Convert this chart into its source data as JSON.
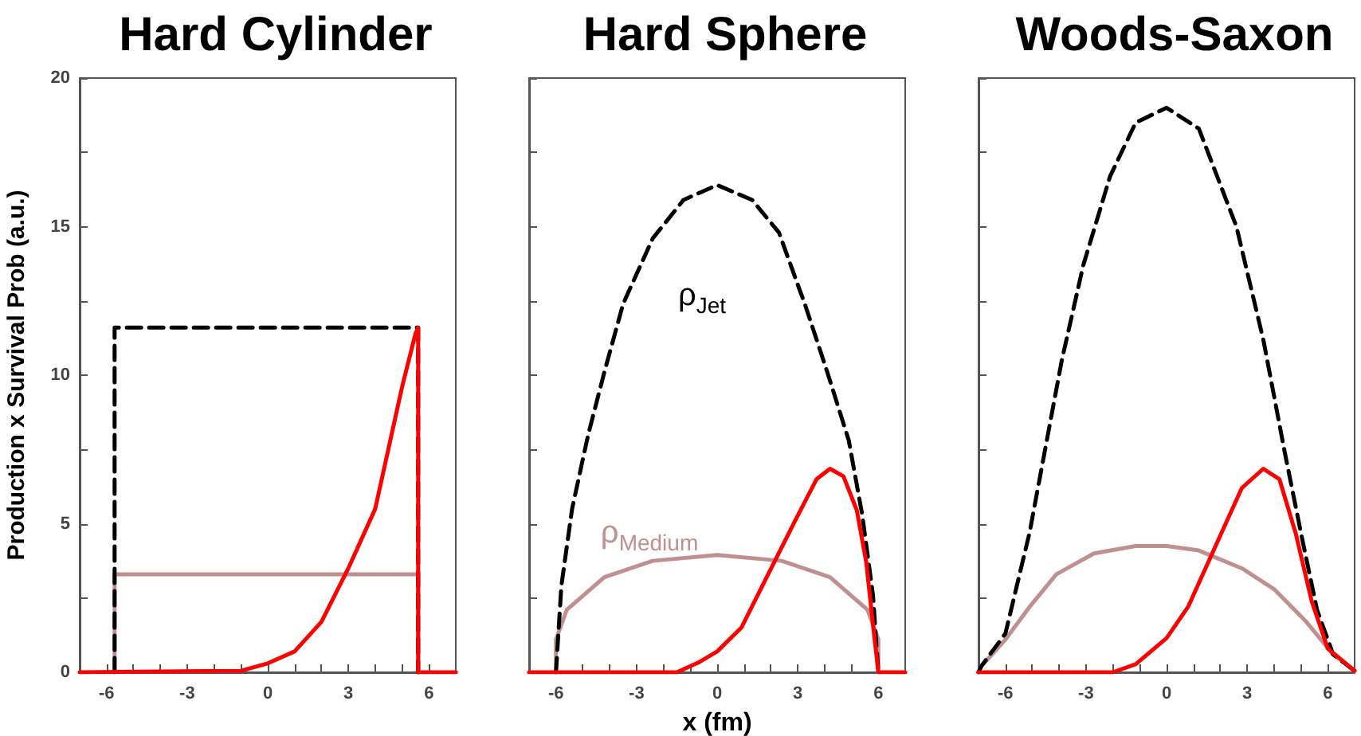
{
  "chart_data": [
    {
      "type": "line",
      "title": "Hard Cylinder",
      "ylabel": "Production x Survival Prob (a.u.)",
      "xlim": [
        -7,
        7
      ],
      "ylim": [
        0,
        20
      ],
      "xticks": [
        {
          "value": -6,
          "label": "-6"
        },
        {
          "value": -5,
          "label": null
        },
        {
          "value": -4,
          "label": null
        },
        {
          "value": -3,
          "label": "-3"
        },
        {
          "value": -2,
          "label": null
        },
        {
          "value": -1,
          "label": null
        },
        {
          "value": 0,
          "label": "0"
        },
        {
          "value": 1,
          "label": null
        },
        {
          "value": 2,
          "label": null
        },
        {
          "value": 3,
          "label": "3"
        },
        {
          "value": 4,
          "label": null
        },
        {
          "value": 5,
          "label": null
        },
        {
          "value": 6,
          "label": "6"
        }
      ],
      "yticks": [
        0,
        {
          "value": 2.5,
          "label": null
        },
        5,
        {
          "value": 7.5,
          "label": null
        },
        10,
        {
          "value": 12.5,
          "label": null
        },
        15,
        {
          "value": 17.5,
          "label": null
        },
        20
      ],
      "grid": false,
      "marker": "none",
      "series": [
        {
          "color": "#c09090",
          "line_style": "solid",
          "x": [
            -5.7,
            -5.7,
            5.6,
            5.6
          ],
          "values": [
            0,
            3.3,
            3.3,
            0
          ]
        },
        {
          "color": "#000000",
          "line_style": "dashed",
          "x": [
            -5.7,
            -5.7,
            5.6,
            5.6
          ],
          "values": [
            0,
            11.6,
            11.6,
            0
          ]
        },
        {
          "color": "#ff0000",
          "line_style": "solid",
          "x": [
            -7,
            -1,
            0,
            1,
            2,
            3,
            4,
            5,
            5.5,
            5.6,
            5.6,
            7
          ],
          "values": [
            0,
            0.05,
            0.3,
            0.7,
            1.7,
            3.5,
            5.5,
            9.6,
            11.4,
            11.6,
            0,
            0
          ]
        }
      ]
    },
    {
      "type": "line",
      "title": "Hard Sphere",
      "xlabel": "x (fm)",
      "xlim": [
        -7,
        7
      ],
      "ylim": [
        0,
        20
      ],
      "tick_labels": "x",
      "xticks": [
        {
          "value": -6,
          "label": "-6"
        },
        {
          "value": -5,
          "label": null
        },
        {
          "value": -4,
          "label": null
        },
        {
          "value": -3,
          "label": "-3"
        },
        {
          "value": -2,
          "label": null
        },
        {
          "value": -1,
          "label": null
        },
        {
          "value": 0,
          "label": "0"
        },
        {
          "value": 1,
          "label": null
        },
        {
          "value": 2,
          "label": null
        },
        {
          "value": 3,
          "label": "3"
        },
        {
          "value": 4,
          "label": null
        },
        {
          "value": 5,
          "label": null
        },
        {
          "value": 6,
          "label": "6"
        }
      ],
      "yticks": [
        0,
        {
          "value": 2.5,
          "label": null
        },
        5,
        {
          "value": 7.5,
          "label": null
        },
        10,
        {
          "value": 12.5,
          "label": null
        },
        15,
        {
          "value": 17.5,
          "label": null
        },
        20
      ],
      "grid": false,
      "marker": "none",
      "annotations": [
        "ρ$_{Medium}$",
        "ρ$_{Jet}$"
      ],
      "series": [
        {
          "color": "#c09090",
          "line_style": "solid",
          "x": [
            -6,
            -6,
            -5.6,
            -4.2,
            -2.4,
            0,
            2.4,
            4.2,
            5.6,
            6,
            6
          ],
          "values": [
            0,
            1.1,
            2.1,
            3.2,
            3.75,
            3.95,
            3.75,
            3.2,
            2.1,
            1.1,
            0
          ]
        },
        {
          "color": "#000000",
          "line_style": "dashed",
          "x": [
            -6,
            -5.8,
            -5.4,
            -4.8,
            -4.2,
            -3.5,
            -2.4,
            -1.25,
            0,
            1.3,
            2.3,
            3.3,
            4.1,
            4.9,
            5.4,
            5.8,
            6
          ],
          "values": [
            0,
            2.9,
            5.5,
            8,
            10.1,
            12.4,
            14.6,
            15.9,
            16.4,
            15.9,
            14.8,
            12.3,
            10.1,
            7.8,
            5.3,
            2.6,
            0
          ]
        },
        {
          "color": "#ff0000",
          "line_style": "solid",
          "x": [
            -7,
            -1.5,
            -0.65,
            0,
            0.9,
            1.9,
            2.9,
            3.7,
            4.2,
            4.7,
            5.2,
            5.55,
            5.85,
            6,
            7
          ],
          "values": [
            0,
            0,
            0.35,
            0.7,
            1.5,
            3.3,
            5.1,
            6.5,
            6.85,
            6.6,
            5.45,
            3.7,
            1.2,
            0,
            0
          ]
        }
      ]
    },
    {
      "type": "line",
      "title": "Woods-Saxon",
      "xlim": [
        -7,
        7
      ],
      "ylim": [
        0,
        20
      ],
      "tick_labels": "x",
      "xticks": [
        {
          "value": -6,
          "label": "-6"
        },
        {
          "value": -5,
          "label": null
        },
        {
          "value": -4,
          "label": null
        },
        {
          "value": -3,
          "label": "-3"
        },
        {
          "value": -2,
          "label": null
        },
        {
          "value": -1,
          "label": null
        },
        {
          "value": 0,
          "label": "0"
        },
        {
          "value": 1,
          "label": null
        },
        {
          "value": 2,
          "label": null
        },
        {
          "value": 3,
          "label": "3"
        },
        {
          "value": 4,
          "label": null
        },
        {
          "value": 5,
          "label": null
        },
        {
          "value": 6,
          "label": "6"
        }
      ],
      "yticks": [
        0,
        {
          "value": 2.5,
          "label": null
        },
        5,
        {
          "value": 7.5,
          "label": null
        },
        10,
        {
          "value": 12.5,
          "label": null
        },
        15,
        {
          "value": 17.5,
          "label": null
        },
        20
      ],
      "grid": false,
      "marker": "none",
      "series": [
        {
          "color": "#c09090",
          "line_style": "solid",
          "x": [
            -7,
            -6.9,
            -6,
            -5.1,
            -4.1,
            -2.7,
            -1.15,
            0,
            1.2,
            2.8,
            4,
            5.2,
            6.2,
            7
          ],
          "values": [
            0,
            0.2,
            1.1,
            2.2,
            3.3,
            4,
            4.25,
            4.25,
            4.1,
            3.5,
            2.8,
            1.7,
            0.6,
            0.05
          ]
        },
        {
          "color": "#000000",
          "line_style": "dashed",
          "x": [
            -7,
            -6.9,
            -6,
            -5.1,
            -4.5,
            -3.9,
            -3.1,
            -2.1,
            -1.15,
            0,
            1.2,
            2.6,
            3.6,
            4.4,
            5,
            5.6,
            6.2,
            7
          ],
          "values": [
            0,
            0.2,
            1.3,
            4.7,
            7.6,
            10.5,
            13.7,
            16.7,
            18.5,
            19,
            18.3,
            15,
            11.2,
            7.4,
            4.7,
            2.1,
            0.6,
            0.05
          ]
        },
        {
          "color": "#ff0000",
          "line_style": "solid",
          "x": [
            -7,
            -2,
            -1.15,
            0,
            0.8,
            1.8,
            2.8,
            3.6,
            4.2,
            4.8,
            5.4,
            6,
            7
          ],
          "values": [
            0,
            0,
            0.27,
            1.15,
            2.2,
            4.2,
            6.2,
            6.85,
            6.5,
            4.7,
            2.4,
            0.8,
            0.05
          ]
        }
      ]
    }
  ]
}
